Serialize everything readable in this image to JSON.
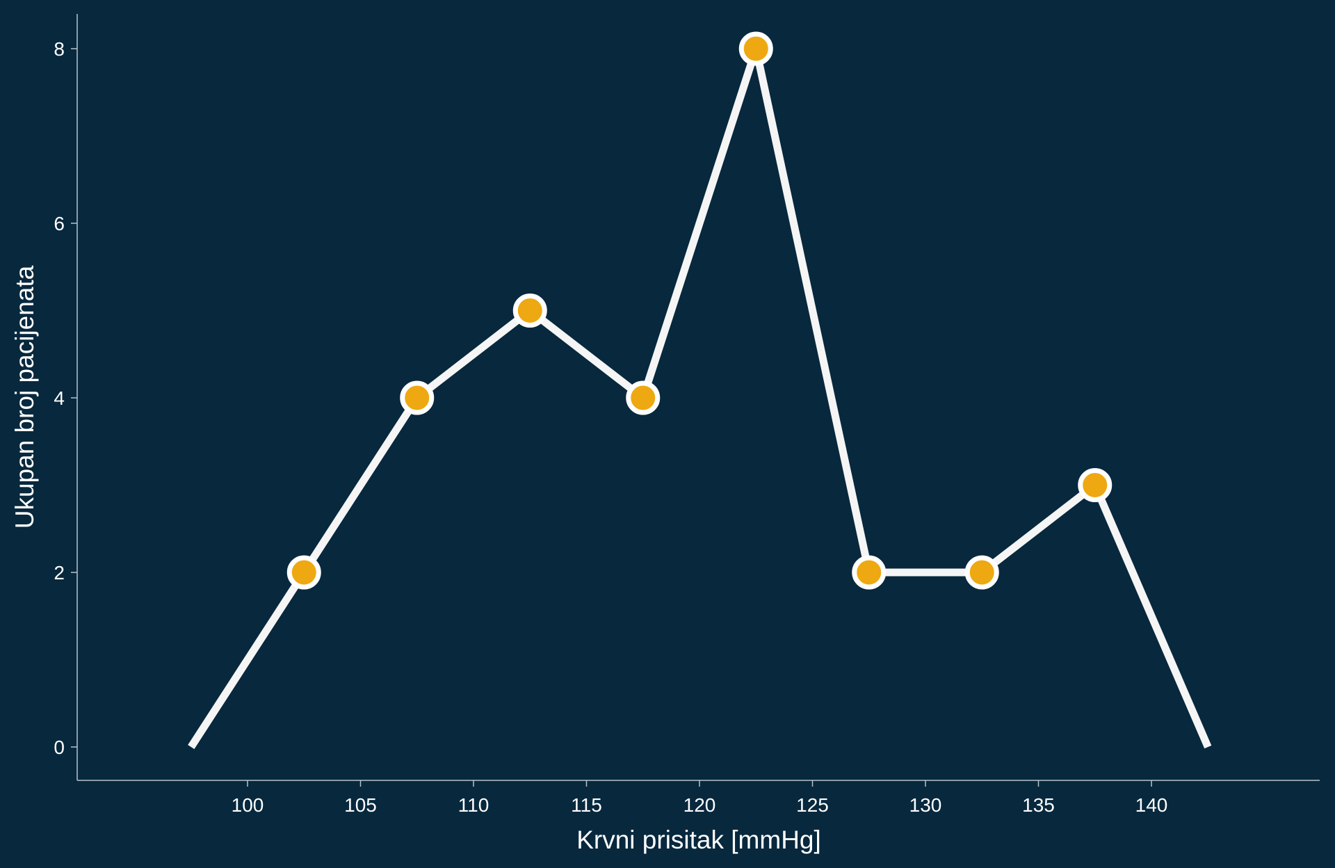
{
  "chart_data": {
    "type": "line",
    "xlabel": "Krvni prisitak [mmHg]",
    "ylabel": "Ukupan broj pacijenata",
    "x": [
      97.5,
      102.5,
      107.5,
      112.5,
      117.5,
      122.5,
      127.5,
      132.5,
      137.5,
      142.5
    ],
    "y": [
      0,
      2,
      4,
      5,
      4,
      8,
      2,
      2,
      3,
      0
    ],
    "markers": [
      false,
      true,
      true,
      true,
      true,
      true,
      true,
      true,
      true,
      false
    ],
    "xlim": [
      90,
      145
    ],
    "ylim": [
      -0.8,
      8.8
    ],
    "xticks": [
      100,
      105,
      110,
      115,
      120,
      125,
      130,
      135,
      140
    ],
    "yticks": [
      0,
      2,
      4,
      6,
      8
    ],
    "grid": false,
    "colors": {
      "background": "#07283d",
      "line": "#f5f5f5",
      "marker_fill": "#eea811",
      "marker_edge": "#ffffff",
      "axis": "#b9c2c9",
      "text": "#ffffff"
    }
  }
}
